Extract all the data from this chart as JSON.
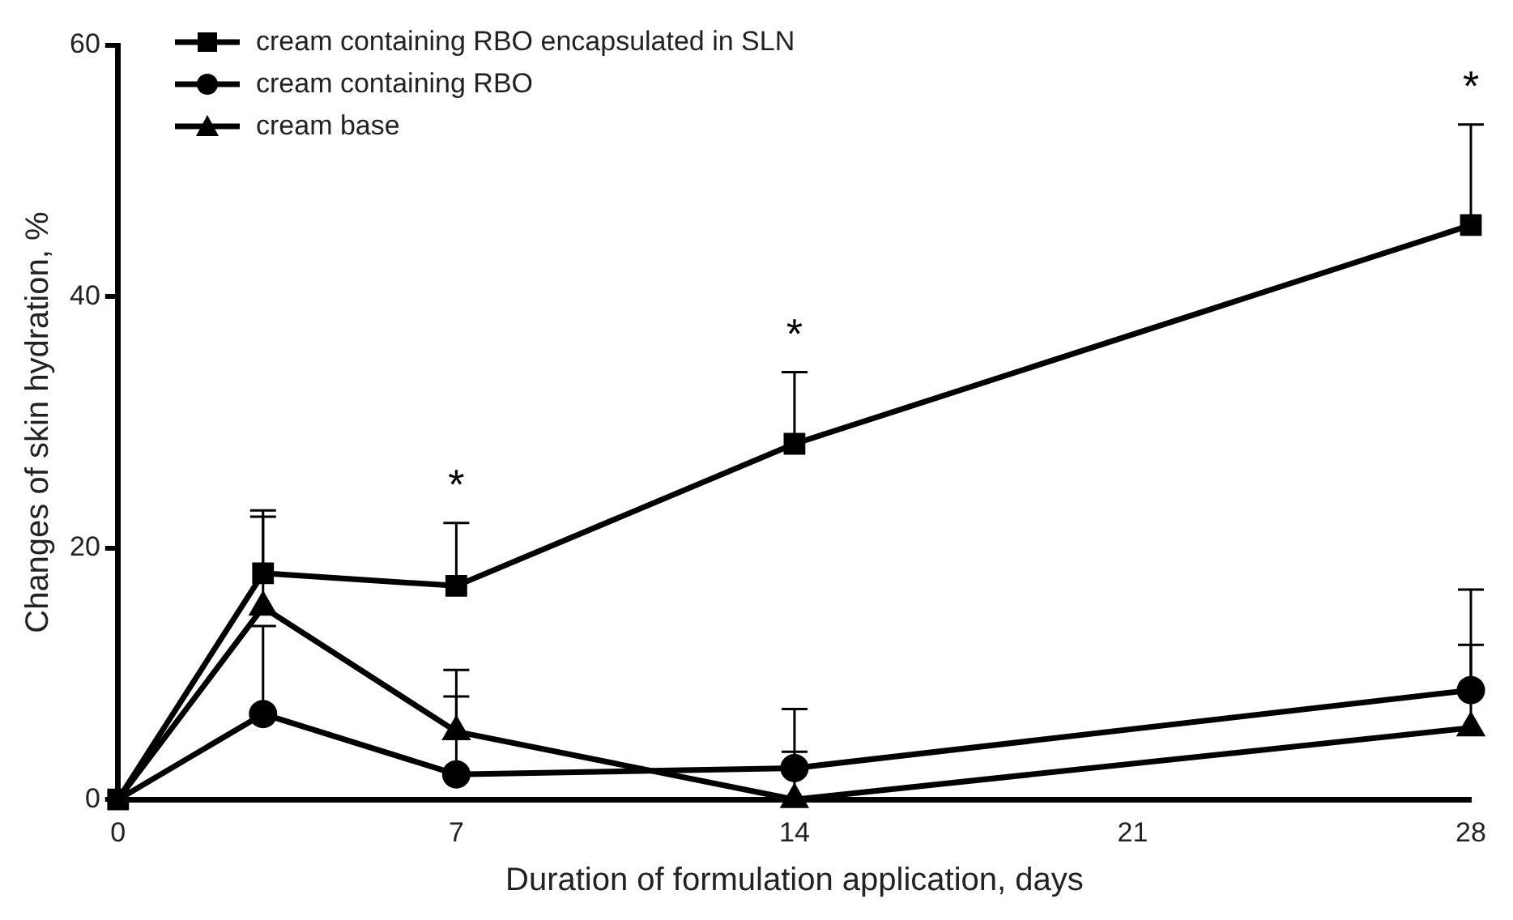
{
  "chart_data": {
    "type": "line",
    "xlabel": "Duration of formulation application, days",
    "ylabel": "Changes of skin hydration, %",
    "x": [
      0,
      3,
      7,
      14,
      28
    ],
    "xlim": [
      0,
      28
    ],
    "xticks": [
      0,
      7,
      14,
      21,
      28
    ],
    "ylim": [
      0,
      60
    ],
    "yticks": [
      0,
      20,
      40,
      60
    ],
    "grid": false,
    "legend": "top left",
    "line_style": "solid",
    "series": [
      {
        "name": "cream containing RBO encapsulated in SLN",
        "color": "#000000",
        "marker": "square",
        "values": [
          0,
          18,
          17,
          28.3,
          45.7
        ],
        "errors": [
          null,
          [
            18,
            23
          ],
          [
            17,
            22
          ],
          [
            28.3,
            34
          ],
          [
            45.7,
            53.7
          ]
        ]
      },
      {
        "name": "cream containing RBO",
        "color": "#000000",
        "marker": "circle",
        "values": [
          0,
          6.8,
          2,
          2.5,
          8.7
        ],
        "errors": [
          null,
          [
            6.8,
            13.8
          ],
          [
            2,
            8.2
          ],
          [
            2.5,
            7.2
          ],
          [
            8.7,
            16.7
          ]
        ]
      },
      {
        "name": "cream base",
        "color": "#000000",
        "marker": "triangle",
        "values": [
          0,
          15.3,
          5.4,
          0,
          5.7
        ],
        "errors": [
          null,
          [
            15.3,
            22.5
          ],
          [
            5.4,
            10.3
          ],
          [
            0,
            3.8
          ],
          [
            5.7,
            12.3
          ]
        ]
      }
    ],
    "annotations": [
      {
        "text": "*",
        "x": 7,
        "y": 22
      },
      {
        "text": "*",
        "x": 14,
        "y": 34
      },
      {
        "text": "*",
        "x": 28,
        "y": 53.7
      }
    ]
  }
}
